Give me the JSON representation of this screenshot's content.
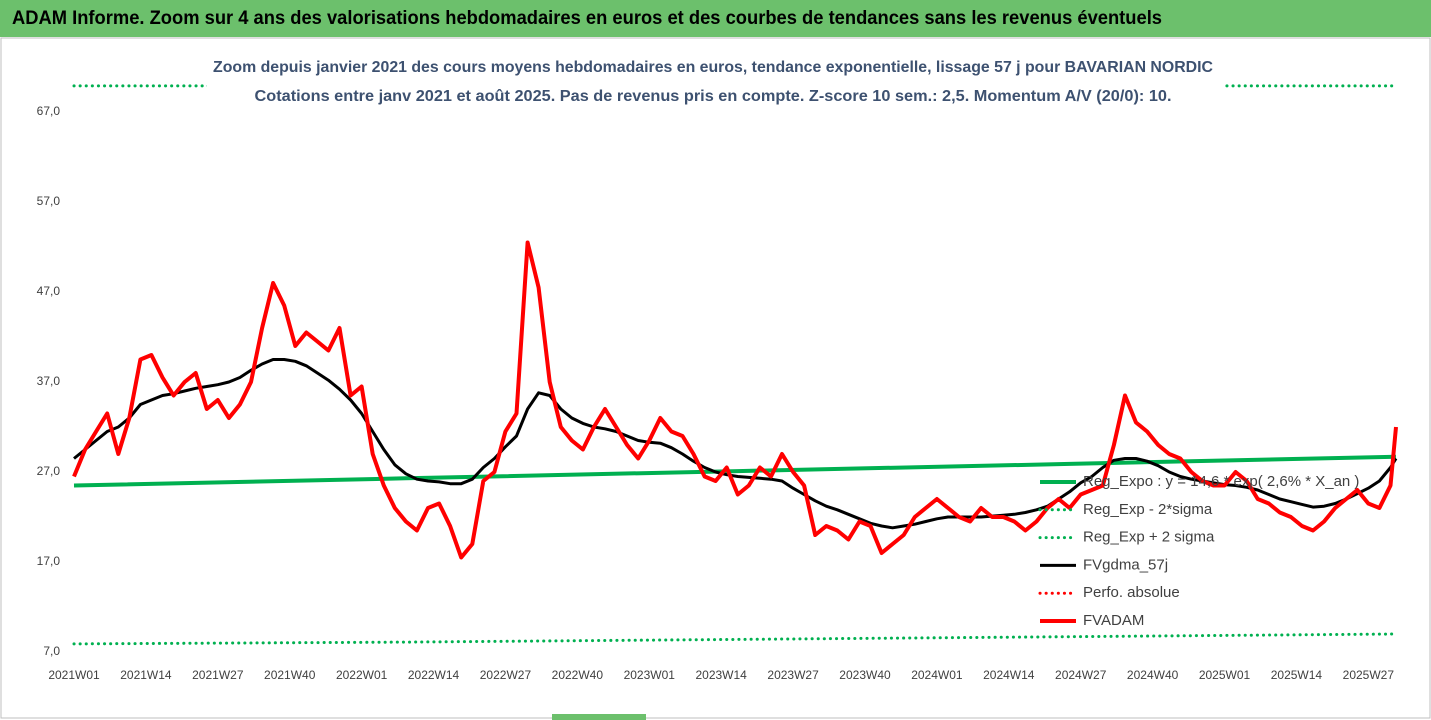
{
  "header": {
    "title": "ADAM Informe. Zoom sur 4 ans des valorisations hebdomadaires en euros et des courbes de tendances sans les revenus éventuels"
  },
  "chart_data": {
    "type": "line",
    "title": "Zoom depuis janvier 2021 des cours moyens hebdomadaires en euros, tendance exponentielle, lissage 57 j pour BAVARIAN NORDIC",
    "subtitle": "Cotations entre janv 2021 et août 2025.  Pas de revenus pris en compte. Z-score 10 sem.: 2,5. Momentum A/V (20/0): 10.",
    "x": [
      0,
      2,
      4,
      6,
      8,
      10,
      12,
      14,
      16,
      18,
      20,
      22,
      24,
      26,
      28,
      30,
      32,
      34,
      36,
      38,
      40,
      42,
      44,
      46,
      48,
      50,
      52,
      54,
      56,
      58,
      60,
      62,
      64,
      66,
      68,
      70,
      72,
      74,
      76,
      78,
      80,
      82,
      84,
      86,
      88,
      90,
      92,
      94,
      96,
      98,
      100,
      102,
      104,
      106,
      108,
      110,
      112,
      114,
      116,
      118,
      120,
      122,
      124,
      126,
      128,
      130,
      132,
      134,
      136,
      138,
      140,
      142,
      144,
      146,
      148,
      150,
      152,
      154,
      156,
      158,
      160,
      162,
      164,
      166,
      168,
      170,
      172,
      174,
      176,
      178,
      180,
      182,
      184,
      186,
      188,
      190,
      192,
      194,
      196,
      198,
      200,
      202,
      204,
      206,
      208,
      210,
      212,
      214,
      216,
      218,
      220,
      222,
      224,
      226,
      228,
      230,
      232,
      234,
      236,
      238,
      239
    ],
    "xlim": [
      0,
      239
    ],
    "xticks": [
      {
        "value": 0,
        "label": "2021W01"
      },
      {
        "value": 13,
        "label": "2021W14"
      },
      {
        "value": 26,
        "label": "2021W27"
      },
      {
        "value": 39,
        "label": "2021W40"
      },
      {
        "value": 52,
        "label": "2022W01"
      },
      {
        "value": 65,
        "label": "2022W14"
      },
      {
        "value": 78,
        "label": "2022W27"
      },
      {
        "value": 91,
        "label": "2022W40"
      },
      {
        "value": 104,
        "label": "2023W01"
      },
      {
        "value": 117,
        "label": "2023W14"
      },
      {
        "value": 130,
        "label": "2023W27"
      },
      {
        "value": 143,
        "label": "2023W40"
      },
      {
        "value": 156,
        "label": "2024W01"
      },
      {
        "value": 169,
        "label": "2024W14"
      },
      {
        "value": 182,
        "label": "2024W27"
      },
      {
        "value": 195,
        "label": "2024W40"
      },
      {
        "value": 208,
        "label": "2025W01"
      },
      {
        "value": 221,
        "label": "2025W14"
      },
      {
        "value": 234,
        "label": "2025W27"
      }
    ],
    "ylim": [
      7,
      67
    ],
    "yticks": [
      {
        "value": 7,
        "label": "7,0"
      },
      {
        "value": 17,
        "label": "17,0"
      },
      {
        "value": 27,
        "label": "27,0"
      },
      {
        "value": 37,
        "label": "37,0"
      },
      {
        "value": 47,
        "label": "47,0"
      },
      {
        "value": 57,
        "label": "57,0"
      },
      {
        "value": 67,
        "label": "67,0"
      }
    ],
    "grid": false,
    "legend": "right",
    "series": [
      {
        "name": "Reg_Expo : y = 14,6 * exp( 2,6% *  X_an )",
        "color": "#00b050",
        "style": "solid",
        "x": [
          0,
          60,
          120,
          180,
          239
        ],
        "values": [
          25.5,
          26.3,
          27.1,
          27.9,
          28.7
        ]
      },
      {
        "name": "Reg_Exp - 2*sigma",
        "color": "#00b050",
        "style": "dotted",
        "x": [
          0,
          60,
          120,
          180,
          239
        ],
        "values": [
          7.9,
          8.1,
          8.4,
          8.7,
          9.0
        ]
      },
      {
        "name": "Reg_Exp + 2 sigma",
        "color": "#00b050",
        "style": "dotted",
        "x": [
          0,
          60,
          120,
          180,
          239
        ],
        "values": [
          69.9,
          69.9,
          69.9,
          69.9,
          69.9
        ]
      },
      {
        "name": "FVgdma_57j",
        "color": "#000000",
        "style": "solid",
        "values": [
          28.5,
          29.5,
          30.5,
          31.5,
          32,
          33,
          34.5,
          35,
          35.5,
          35.7,
          36,
          36.3,
          36.5,
          36.7,
          37,
          37.5,
          38.3,
          39,
          39.5,
          39.5,
          39.3,
          38.8,
          38,
          37.2,
          36.2,
          35,
          33.5,
          31.5,
          29.5,
          27.8,
          26.8,
          26.2,
          26,
          25.9,
          25.7,
          25.7,
          26.2,
          27.5,
          28.5,
          29.8,
          31,
          34,
          35.8,
          35.5,
          34,
          33,
          32.4,
          32,
          31.8,
          31.5,
          31,
          30.5,
          30.3,
          30.2,
          29.7,
          29,
          28.2,
          27.5,
          27,
          26.7,
          26.5,
          26.4,
          26.3,
          26.2,
          26,
          25.2,
          24.5,
          23.8,
          23.2,
          22.8,
          22.3,
          21.8,
          21.3,
          21,
          20.8,
          21,
          21.2,
          21.5,
          21.8,
          22,
          22,
          22,
          22,
          22.1,
          22.2,
          22.3,
          22.5,
          22.8,
          23.2,
          24,
          24.8,
          25.8,
          26.5,
          27.5,
          28.3,
          28.5,
          28.5,
          28.2,
          27.7,
          27,
          26.5,
          26.2,
          26,
          25.8,
          25.6,
          25.5,
          25.3,
          25,
          24.5,
          24,
          23.7,
          23.4,
          23.1,
          23.2,
          23.5,
          24,
          24.6,
          25.2,
          26,
          27.5,
          28.5
        ]
      },
      {
        "name": "Perfo. absolue",
        "color": "#ff0000",
        "style": "dotted",
        "x": [],
        "values": []
      },
      {
        "name": "FVADAM",
        "color": "#ff0000",
        "style": "thick",
        "values": [
          26.5,
          29.5,
          31.5,
          33.5,
          29,
          33,
          39.5,
          40,
          37.5,
          35.5,
          37,
          38,
          34,
          35,
          33,
          34.5,
          37,
          43,
          48,
          45.5,
          41,
          42.5,
          41.5,
          40.5,
          43,
          35.5,
          36.5,
          29,
          25.5,
          23,
          21.5,
          20.5,
          23,
          23.5,
          21,
          17.5,
          19,
          26,
          27,
          31.5,
          33.5,
          52.5,
          47.5,
          37,
          32,
          30.5,
          29.5,
          32,
          34,
          32,
          30,
          28.5,
          30.5,
          33,
          31.5,
          31,
          29,
          26.5,
          26,
          27.5,
          24.5,
          25.5,
          27.5,
          26.5,
          29,
          27,
          25.5,
          20,
          21,
          20.5,
          19.5,
          21.5,
          21,
          18,
          19,
          20,
          22,
          23,
          24,
          23,
          22,
          21.5,
          23,
          22,
          22,
          21.5,
          20.5,
          21.5,
          23,
          24,
          23,
          24.5,
          25,
          25.5,
          30,
          35.5,
          32.5,
          31.5,
          30,
          29,
          28.5,
          27,
          26,
          25.5,
          25.5,
          27,
          26,
          24,
          23.5,
          22.5,
          22,
          21,
          20.5,
          21.5,
          23,
          24,
          25,
          23.5,
          23,
          25.5,
          32
        ]
      }
    ]
  }
}
